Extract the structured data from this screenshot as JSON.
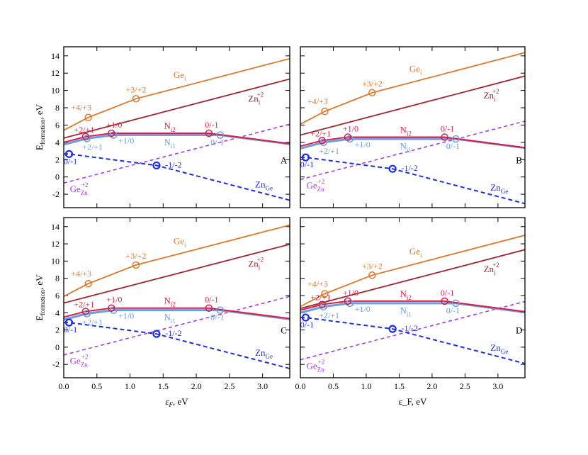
{
  "chart_data": {
    "type": "line",
    "xlabel": "ε_F, eV",
    "xlabel_main": "ε",
    "xlabel_sub": "F",
    "xlabel_rest": ", eV",
    "ylabel_main": "E",
    "ylabel_sub": "formation",
    "ylabel_rest": ", eV",
    "xlim": [
      0,
      3.41
    ],
    "ylim": [
      -3.55,
      15.05
    ],
    "xticks": [
      "0.0",
      "0.5",
      "1.0",
      "1.5",
      "2.0",
      "2.5",
      "3.0"
    ],
    "yticks": [
      "-2",
      "0",
      "2",
      "4",
      "6",
      "8",
      "10",
      "12",
      "14"
    ],
    "colors": {
      "Ge_i": "#e0782a",
      "Zn_i": "#a3262e",
      "N_i2": "#dc1c48",
      "N_i1": "#6a9ee0",
      "Ge_Zn": "#a23ee6",
      "Zn_Ge": "#1c2ee6"
    },
    "species_labels": {
      "Ge_i": {
        "base": "Ge",
        "sub": "i",
        "sup": ""
      },
      "Zn_i": {
        "base": "Zn",
        "sub": "i",
        "sup": "+2"
      },
      "N_i2": {
        "base": "N",
        "sub": "i2",
        "sup": ""
      },
      "N_i1": {
        "base": "N",
        "sub": "i1",
        "sup": ""
      },
      "Ge_Zn": {
        "base": "Ge",
        "sub": "Zn",
        "sup": "+2"
      },
      "Zn_Ge": {
        "base": "Zn",
        "sub": "Ge",
        "sup": ""
      }
    },
    "panels": [
      {
        "label": "A",
        "series": {
          "Ge_i": {
            "points": [
              [
                0,
                5.4
              ],
              [
                0.37,
                6.88
              ],
              [
                1.09,
                9.04
              ],
              [
                3.41,
                13.68
              ]
            ],
            "transitions": [
              [
                0.37,
                6.88,
                "+4/+3"
              ],
              [
                1.09,
                9.04,
                "+3/+2"
              ]
            ]
          },
          "Zn_i": {
            "points": [
              [
                0,
                4.5
              ],
              [
                3.41,
                11.32
              ]
            ],
            "transitions": []
          },
          "N_i2": {
            "points": [
              [
                0,
                4.0
              ],
              [
                0.33,
                4.66
              ],
              [
                0.72,
                5.05
              ],
              [
                2.19,
                5.05
              ],
              [
                3.41,
                3.84
              ]
            ],
            "transitions": [
              [
                0.33,
                4.66,
                "+2/+1"
              ],
              [
                0.72,
                5.05,
                "+1/0"
              ],
              [
                2.19,
                5.05,
                "0/-1"
              ]
            ]
          },
          "N_i1": {
            "points": [
              [
                0,
                3.75
              ],
              [
                0.35,
                4.45
              ],
              [
                0.75,
                4.85
              ],
              [
                2.36,
                4.85
              ],
              [
                3.41,
                3.8
              ]
            ],
            "transitions": [
              [
                0.35,
                4.45,
                "+2/+1"
              ],
              [
                0.75,
                4.85,
                "+1/0"
              ],
              [
                2.36,
                4.85,
                "0/-1"
              ]
            ]
          },
          "Ge_Zn": {
            "points": [
              [
                0,
                -0.7
              ],
              [
                3.41,
                6.1
              ]
            ],
            "transitions": []
          },
          "Zn_Ge": {
            "points": [
              [
                0,
                2.65
              ],
              [
                0.08,
                2.65
              ],
              [
                1.4,
                1.33
              ],
              [
                3.41,
                -2.69
              ]
            ],
            "transitions": [
              [
                0.08,
                2.65,
                "0/-1"
              ],
              [
                1.4,
                1.33,
                "-1/-2"
              ]
            ]
          }
        }
      },
      {
        "label": "B",
        "series": {
          "Ge_i": {
            "points": [
              [
                0,
                6.1
              ],
              [
                0.37,
                7.58
              ],
              [
                1.09,
                9.74
              ],
              [
                3.41,
                14.38
              ]
            ],
            "transitions": [
              [
                0.37,
                7.58,
                "+4/+3"
              ],
              [
                1.09,
                9.74,
                "+3/+2"
              ]
            ]
          },
          "Zn_i": {
            "points": [
              [
                0,
                4.85
              ],
              [
                3.41,
                11.67
              ]
            ],
            "transitions": []
          },
          "N_i2": {
            "points": [
              [
                0,
                3.55
              ],
              [
                0.33,
                4.21
              ],
              [
                0.72,
                4.6
              ],
              [
                2.19,
                4.6
              ],
              [
                3.41,
                3.38
              ]
            ],
            "transitions": [
              [
                0.33,
                4.21,
                "+2/+1"
              ],
              [
                0.72,
                4.6,
                "+1/0"
              ],
              [
                2.19,
                4.6,
                "0/-1"
              ]
            ]
          },
          "N_i1": {
            "points": [
              [
                0,
                3.3
              ],
              [
                0.35,
                4.0
              ],
              [
                0.75,
                4.4
              ],
              [
                2.36,
                4.4
              ],
              [
                3.41,
                3.35
              ]
            ],
            "transitions": [
              [
                0.35,
                4.0,
                "+2/+1"
              ],
              [
                0.75,
                4.4,
                "+1/0"
              ],
              [
                2.36,
                4.4,
                "0/-1"
              ]
            ]
          },
          "Ge_Zn": {
            "points": [
              [
                0,
                -0.3
              ],
              [
                3.41,
                6.45
              ]
            ],
            "transitions": []
          },
          "Zn_Ge": {
            "points": [
              [
                0,
                2.26
              ],
              [
                0.08,
                2.26
              ],
              [
                1.4,
                0.94
              ],
              [
                3.41,
                -3.08
              ]
            ],
            "transitions": [
              [
                0.08,
                2.26,
                "0/-1"
              ],
              [
                1.4,
                0.94,
                "-1/-2"
              ]
            ]
          }
        }
      },
      {
        "label": "C",
        "series": {
          "Ge_i": {
            "points": [
              [
                0,
                5.9
              ],
              [
                0.37,
                7.38
              ],
              [
                1.09,
                9.54
              ],
              [
                3.41,
                14.18
              ]
            ],
            "transitions": [
              [
                0.37,
                7.38,
                "+4/+3"
              ],
              [
                1.09,
                9.54,
                "+3/+2"
              ]
            ]
          },
          "Zn_i": {
            "points": [
              [
                0,
                5.13
              ],
              [
                3.41,
                11.95
              ]
            ],
            "transitions": []
          },
          "N_i2": {
            "points": [
              [
                0,
                3.49
              ],
              [
                0.33,
                4.15
              ],
              [
                0.72,
                4.54
              ],
              [
                2.19,
                4.54
              ],
              [
                3.41,
                3.32
              ]
            ],
            "transitions": [
              [
                0.33,
                4.15,
                "+2/+1"
              ],
              [
                0.72,
                4.54,
                "+1/0"
              ],
              [
                2.19,
                4.54,
                "0/-1"
              ]
            ]
          },
          "N_i1": {
            "points": [
              [
                0,
                3.2
              ],
              [
                0.35,
                3.9
              ],
              [
                0.75,
                4.3
              ],
              [
                2.36,
                4.3
              ],
              [
                3.41,
                3.25
              ]
            ],
            "transitions": [
              [
                0.35,
                3.9,
                "+2/+1"
              ],
              [
                0.75,
                4.3,
                "+1/0"
              ],
              [
                2.36,
                4.3,
                "0/-1"
              ]
            ]
          },
          "Ge_Zn": {
            "points": [
              [
                0,
                -0.9
              ],
              [
                3.41,
                5.9
              ]
            ],
            "transitions": []
          },
          "Zn_Ge": {
            "points": [
              [
                0,
                2.86
              ],
              [
                0.08,
                2.86
              ],
              [
                1.4,
                1.54
              ],
              [
                3.41,
                -2.48
              ]
            ],
            "transitions": [
              [
                0.08,
                2.86,
                "0/-1"
              ],
              [
                1.4,
                1.54,
                "-1/-2"
              ]
            ]
          }
        }
      },
      {
        "label": "D",
        "series": {
          "Ge_i": {
            "points": [
              [
                0,
                4.72
              ],
              [
                0.37,
                6.2
              ],
              [
                1.09,
                8.36
              ],
              [
                3.41,
                13.0
              ]
            ],
            "transitions": [
              [
                0.37,
                6.2,
                "+4/+3"
              ],
              [
                1.09,
                8.36,
                "+3/+2"
              ]
            ]
          },
          "Zn_i": {
            "points": [
              [
                0,
                4.5
              ],
              [
                3.41,
                11.32
              ]
            ],
            "transitions": []
          },
          "N_i2": {
            "points": [
              [
                0,
                4.3
              ],
              [
                0.33,
                4.96
              ],
              [
                0.72,
                5.35
              ],
              [
                2.19,
                5.35
              ],
              [
                3.41,
                4.13
              ]
            ],
            "transitions": [
              [
                0.33,
                4.96,
                "+2/+1"
              ],
              [
                0.72,
                5.35,
                "+1/0"
              ],
              [
                2.19,
                5.35,
                "0/-1"
              ]
            ]
          },
          "N_i1": {
            "points": [
              [
                0,
                4.0
              ],
              [
                0.35,
                4.7
              ],
              [
                0.75,
                5.1
              ],
              [
                2.36,
                5.1
              ],
              [
                3.41,
                4.05
              ]
            ],
            "transitions": [
              [
                0.35,
                4.7,
                "+2/+1"
              ],
              [
                0.75,
                5.1,
                "+1/0"
              ],
              [
                2.36,
                5.1,
                "0/-1"
              ]
            ]
          },
          "Ge_Zn": {
            "points": [
              [
                0,
                -1.46
              ],
              [
                3.41,
                5.3
              ]
            ],
            "transitions": []
          },
          "Zn_Ge": {
            "points": [
              [
                0,
                3.44
              ],
              [
                0.08,
                3.44
              ],
              [
                1.4,
                2.12
              ],
              [
                3.41,
                -1.9
              ]
            ],
            "transitions": [
              [
                0.08,
                3.44,
                "0/-1"
              ],
              [
                1.4,
                2.12,
                "-1/-2"
              ]
            ]
          }
        }
      }
    ]
  }
}
